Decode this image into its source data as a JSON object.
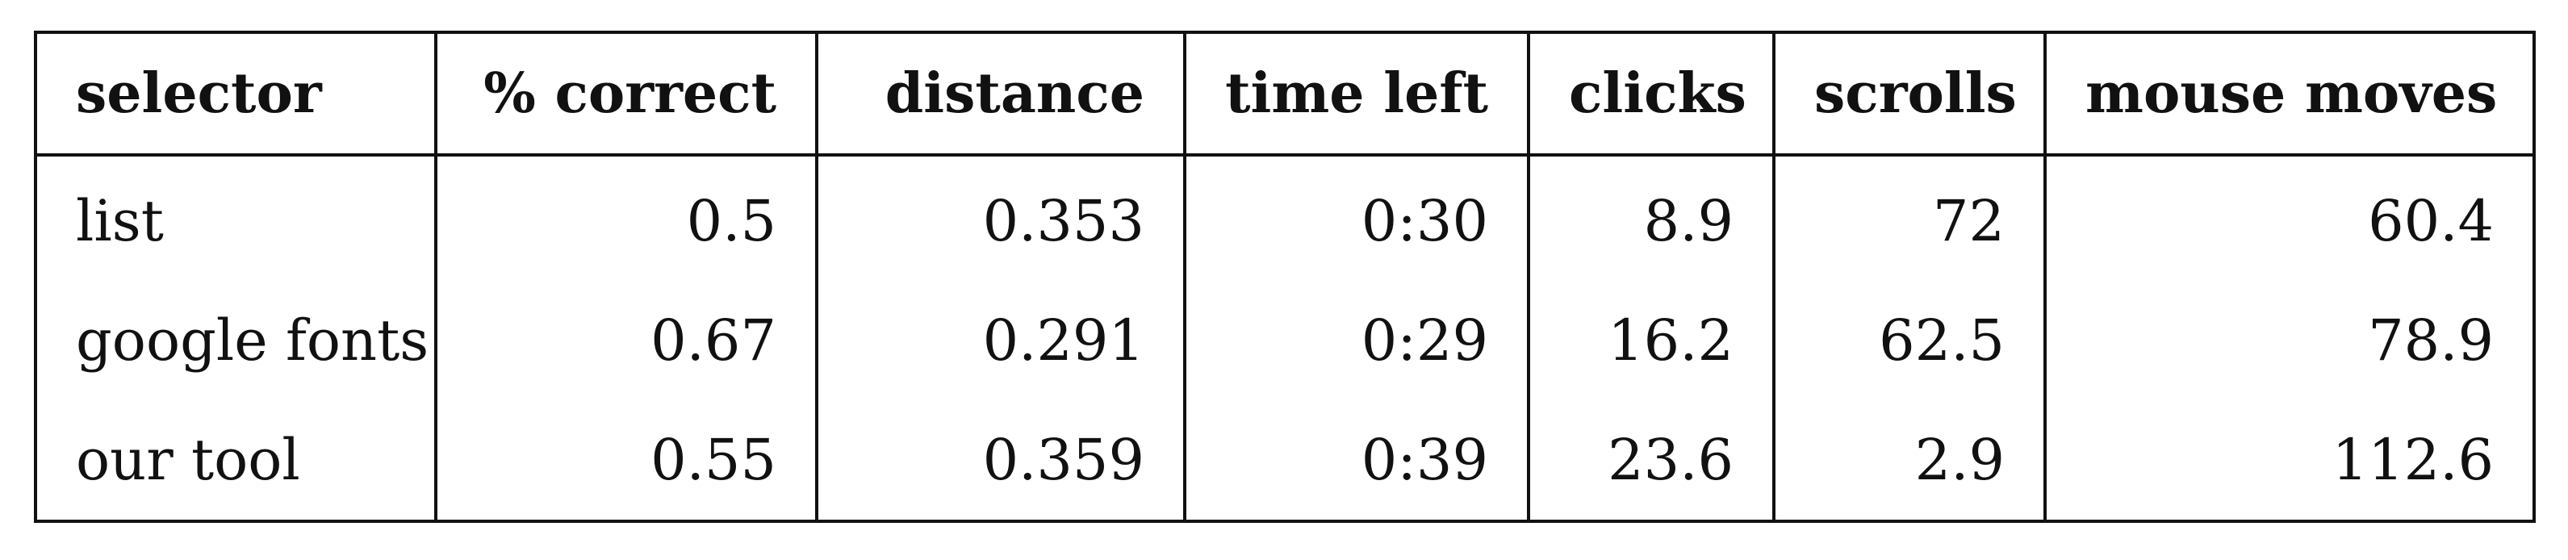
{
  "table": {
    "headers": [
      "selector",
      "% correct",
      "distance",
      "time left",
      "clicks",
      "scrolls",
      "mouse moves"
    ],
    "rows": [
      [
        "list",
        "0.5",
        "0.353",
        "0:30",
        "8.9",
        "72",
        "60.4"
      ],
      [
        "google fonts",
        "0.67",
        "0.291",
        "0:29",
        "16.2",
        "62.5",
        "78.9"
      ],
      [
        "our tool",
        "0.55",
        "0.359",
        "0:39",
        "23.6",
        "2.9",
        "112.6"
      ]
    ]
  }
}
